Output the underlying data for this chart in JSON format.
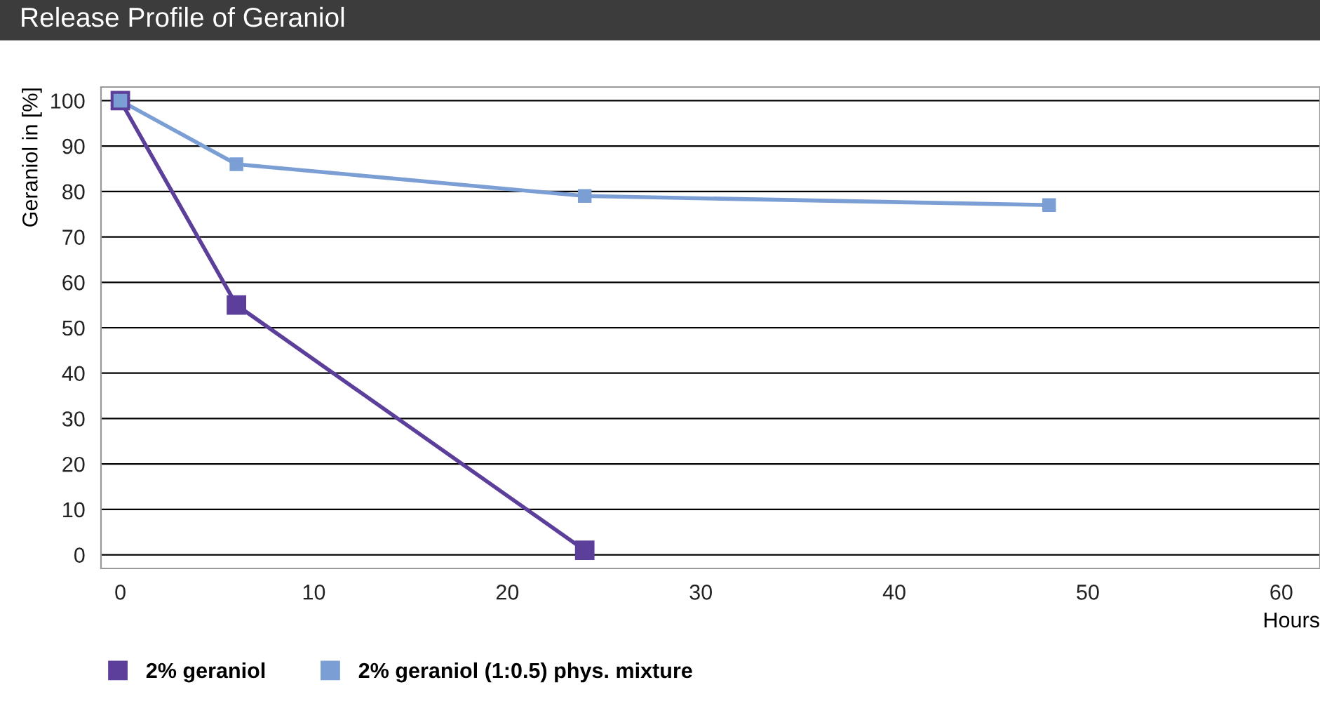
{
  "chart_data": {
    "type": "line",
    "title": "Release Profile of Geraniol",
    "xlabel": "Hours",
    "ylabel": "Geraniol in [%]",
    "series": [
      {
        "name": "2% geraniol",
        "color": "#5b3f9a",
        "x": [
          0,
          6,
          24
        ],
        "values": [
          100,
          55,
          1
        ]
      },
      {
        "name": "2% geraniol (1:0.5) phys. mixture",
        "color": "#7b9fd4",
        "x": [
          0,
          6,
          24,
          48
        ],
        "values": [
          100,
          86,
          79,
          77
        ]
      }
    ],
    "xlim": [
      -1,
      62
    ],
    "xticks": [
      0,
      10,
      20,
      30,
      40,
      50,
      60
    ],
    "ylim": [
      -3,
      103
    ],
    "yticks": [
      0,
      10,
      20,
      30,
      40,
      50,
      60,
      70,
      80,
      90,
      100
    ],
    "grid": "y",
    "legend": "bottom",
    "marker": "square",
    "line_style": "solid"
  }
}
